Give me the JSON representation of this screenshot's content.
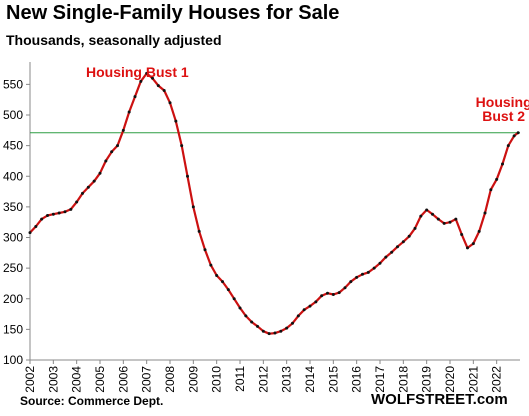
{
  "chart_data": {
    "type": "line",
    "title": "New Single-Family Houses for Sale",
    "subtitle": "Thousands, seasonally adjusted",
    "xlabel": "",
    "ylabel": "",
    "xlim": [
      2002,
      2023
    ],
    "ylim": [
      100,
      580
    ],
    "y_ticks": [
      100,
      150,
      200,
      250,
      300,
      350,
      400,
      450,
      500,
      550
    ],
    "x_ticks": [
      "2002",
      "2003",
      "2004",
      "2005",
      "2006",
      "2007",
      "2008",
      "2009",
      "2010",
      "2011",
      "2012",
      "2013",
      "2014",
      "2015",
      "2016",
      "2017",
      "2018",
      "2019",
      "2020",
      "2021",
      "2022"
    ],
    "grid": false,
    "legend": "none",
    "reference_line": {
      "value": 471,
      "color": "#2e9e44"
    },
    "series": [
      {
        "color": "#cc1111",
        "marker_color": "#111111",
        "points": [
          [
            2002.0,
            308
          ],
          [
            2002.25,
            318
          ],
          [
            2002.5,
            330
          ],
          [
            2002.75,
            336
          ],
          [
            2003.0,
            338
          ],
          [
            2003.25,
            340
          ],
          [
            2003.5,
            342
          ],
          [
            2003.75,
            346
          ],
          [
            2004.0,
            358
          ],
          [
            2004.25,
            372
          ],
          [
            2004.5,
            382
          ],
          [
            2004.75,
            392
          ],
          [
            2005.0,
            405
          ],
          [
            2005.25,
            425
          ],
          [
            2005.5,
            440
          ],
          [
            2005.75,
            450
          ],
          [
            2006.0,
            475
          ],
          [
            2006.25,
            505
          ],
          [
            2006.5,
            530
          ],
          [
            2006.75,
            555
          ],
          [
            2007.0,
            568
          ],
          [
            2007.25,
            560
          ],
          [
            2007.5,
            548
          ],
          [
            2007.75,
            540
          ],
          [
            2008.0,
            520
          ],
          [
            2008.25,
            490
          ],
          [
            2008.5,
            450
          ],
          [
            2008.75,
            400
          ],
          [
            2009.0,
            350
          ],
          [
            2009.25,
            310
          ],
          [
            2009.5,
            280
          ],
          [
            2009.75,
            255
          ],
          [
            2010.0,
            238
          ],
          [
            2010.25,
            228
          ],
          [
            2010.5,
            215
          ],
          [
            2010.75,
            200
          ],
          [
            2011.0,
            185
          ],
          [
            2011.25,
            172
          ],
          [
            2011.5,
            162
          ],
          [
            2011.75,
            155
          ],
          [
            2012.0,
            147
          ],
          [
            2012.25,
            143
          ],
          [
            2012.5,
            144
          ],
          [
            2012.75,
            147
          ],
          [
            2013.0,
            152
          ],
          [
            2013.25,
            160
          ],
          [
            2013.5,
            172
          ],
          [
            2013.75,
            182
          ],
          [
            2014.0,
            188
          ],
          [
            2014.25,
            195
          ],
          [
            2014.5,
            205
          ],
          [
            2014.75,
            209
          ],
          [
            2015.0,
            207
          ],
          [
            2015.25,
            210
          ],
          [
            2015.5,
            218
          ],
          [
            2015.75,
            228
          ],
          [
            2016.0,
            235
          ],
          [
            2016.25,
            240
          ],
          [
            2016.5,
            243
          ],
          [
            2016.75,
            250
          ],
          [
            2017.0,
            258
          ],
          [
            2017.25,
            268
          ],
          [
            2017.5,
            276
          ],
          [
            2017.75,
            285
          ],
          [
            2018.0,
            293
          ],
          [
            2018.25,
            302
          ],
          [
            2018.5,
            315
          ],
          [
            2018.75,
            335
          ],
          [
            2019.0,
            345
          ],
          [
            2019.25,
            338
          ],
          [
            2019.5,
            330
          ],
          [
            2019.75,
            323
          ],
          [
            2020.0,
            325
          ],
          [
            2020.25,
            330
          ],
          [
            2020.5,
            305
          ],
          [
            2020.75,
            283
          ],
          [
            2021.0,
            290
          ],
          [
            2021.25,
            310
          ],
          [
            2021.5,
            340
          ],
          [
            2021.75,
            378
          ],
          [
            2022.0,
            395
          ],
          [
            2022.25,
            420
          ],
          [
            2022.5,
            450
          ],
          [
            2022.75,
            466
          ],
          [
            2022.92,
            471
          ]
        ]
      }
    ],
    "annotations": [
      {
        "text": "Housing Bust 1",
        "x": 2006.6,
        "y": 562,
        "color": "#dd1111"
      },
      {
        "text": "Housing",
        "x": 2022.3,
        "y": 513,
        "color": "#dd1111"
      },
      {
        "text": "Bust 2",
        "x": 2022.3,
        "y": 490,
        "color": "#dd1111"
      }
    ]
  },
  "source": "Source: Commerce Dept.",
  "brand": "WOLFSTREET.com"
}
